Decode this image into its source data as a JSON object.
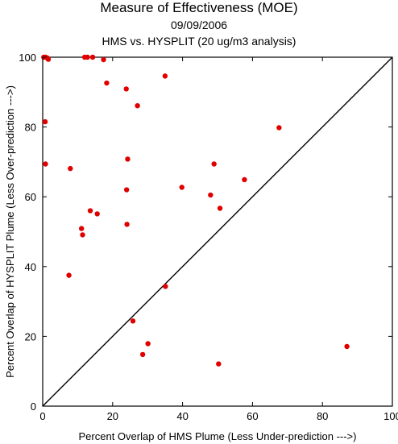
{
  "chart_data": {
    "type": "scatter",
    "title": "Measure of Effectiveness (MOE)",
    "subtitle": "09/09/2006",
    "subtitle2": "HMS vs. HYSPLIT  (20 ug/m3 analysis)",
    "xlabel": "Percent Overlap of HMS Plume (Less Under-prediction --->)",
    "ylabel": "Percent Overlap of HYSPLIT Plume (Less Over-prediction --->)",
    "xlim": [
      0,
      100
    ],
    "ylim": [
      0,
      100
    ],
    "xticks": [
      "0",
      "20",
      "40",
      "60",
      "80",
      "100"
    ],
    "yticks": [
      "0",
      "20",
      "40",
      "60",
      "80",
      "100"
    ],
    "grid": false,
    "reference_line": "y = x",
    "marker_color": "#e00000",
    "points": [
      {
        "x": 0.3,
        "y": 100
      },
      {
        "x": 0.8,
        "y": 100
      },
      {
        "x": 1.3,
        "y": 99.8
      },
      {
        "x": 1.6,
        "y": 99.4
      },
      {
        "x": 12.0,
        "y": 100
      },
      {
        "x": 12.8,
        "y": 100
      },
      {
        "x": 14.3,
        "y": 100
      },
      {
        "x": 17.4,
        "y": 99.3
      },
      {
        "x": 35.0,
        "y": 94.6
      },
      {
        "x": 18.3,
        "y": 92.6
      },
      {
        "x": 23.9,
        "y": 90.9
      },
      {
        "x": 27.1,
        "y": 86.1
      },
      {
        "x": 0.7,
        "y": 81.5
      },
      {
        "x": 67.6,
        "y": 79.8
      },
      {
        "x": 24.3,
        "y": 70.8
      },
      {
        "x": 0.8,
        "y": 69.4
      },
      {
        "x": 49.0,
        "y": 69.4
      },
      {
        "x": 7.9,
        "y": 68.1
      },
      {
        "x": 57.7,
        "y": 64.9
      },
      {
        "x": 39.8,
        "y": 62.7
      },
      {
        "x": 24.0,
        "y": 62.0
      },
      {
        "x": 48.0,
        "y": 60.5
      },
      {
        "x": 50.7,
        "y": 56.7
      },
      {
        "x": 13.6,
        "y": 56.0
      },
      {
        "x": 15.6,
        "y": 55.1
      },
      {
        "x": 24.1,
        "y": 52.1
      },
      {
        "x": 11.1,
        "y": 50.9
      },
      {
        "x": 11.4,
        "y": 49.1
      },
      {
        "x": 7.5,
        "y": 37.5
      },
      {
        "x": 35.1,
        "y": 34.3
      },
      {
        "x": 25.8,
        "y": 24.4
      },
      {
        "x": 30.1,
        "y": 17.9
      },
      {
        "x": 87.0,
        "y": 17.1
      },
      {
        "x": 28.6,
        "y": 14.8
      },
      {
        "x": 50.3,
        "y": 12.1
      }
    ]
  }
}
